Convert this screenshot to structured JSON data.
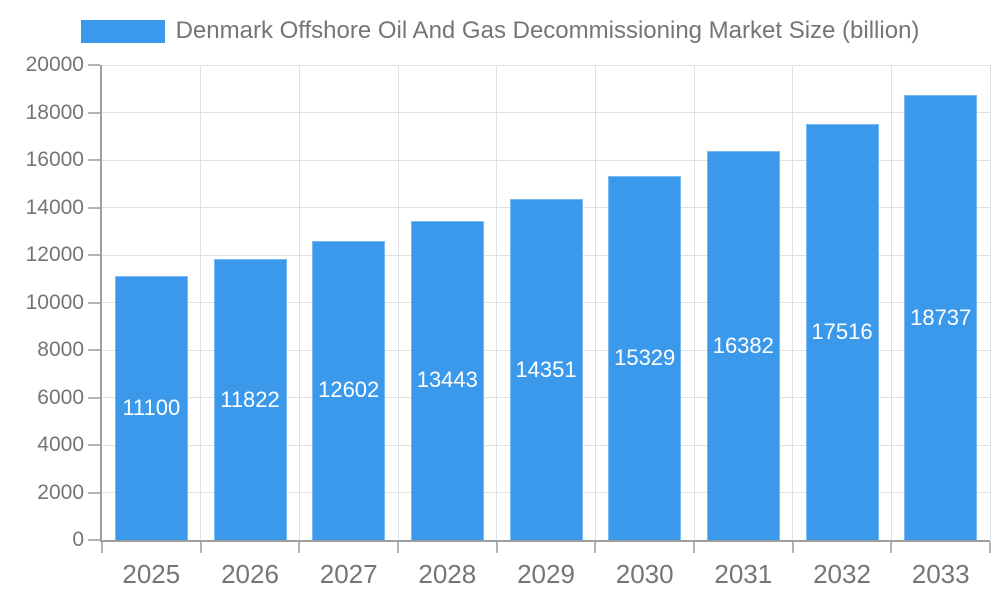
{
  "header": {
    "legend_label": "Denmark Offshore Oil And Gas Decommissioning Market Size (billion)"
  },
  "colors": {
    "bar": "#3b99ec",
    "bar_border": "#7cb8f1",
    "bar_label": "#ffffff",
    "axis": "#9e9e9e",
    "grid": "#e0e0e0",
    "tick": "#b3b3b3",
    "label": "#757575",
    "background": "#ffffff"
  },
  "chart_data": {
    "type": "bar",
    "title": "Denmark Offshore Oil And Gas Decommissioning Market Size (billion)",
    "xlabel": "",
    "ylabel": "",
    "categories": [
      "2025",
      "2026",
      "2027",
      "2028",
      "2029",
      "2030",
      "2031",
      "2032",
      "2033"
    ],
    "values": [
      11100,
      11822,
      12602,
      13443,
      14351,
      15329,
      16382,
      17516,
      18737
    ],
    "ylim": [
      0,
      20000
    ],
    "yticks": [
      0,
      2000,
      4000,
      6000,
      8000,
      10000,
      12000,
      14000,
      16000,
      18000,
      20000
    ],
    "grid": true,
    "vertical_category_gridlines": true,
    "legend_position": "top",
    "bar_value_labels": "inside-center-white"
  }
}
